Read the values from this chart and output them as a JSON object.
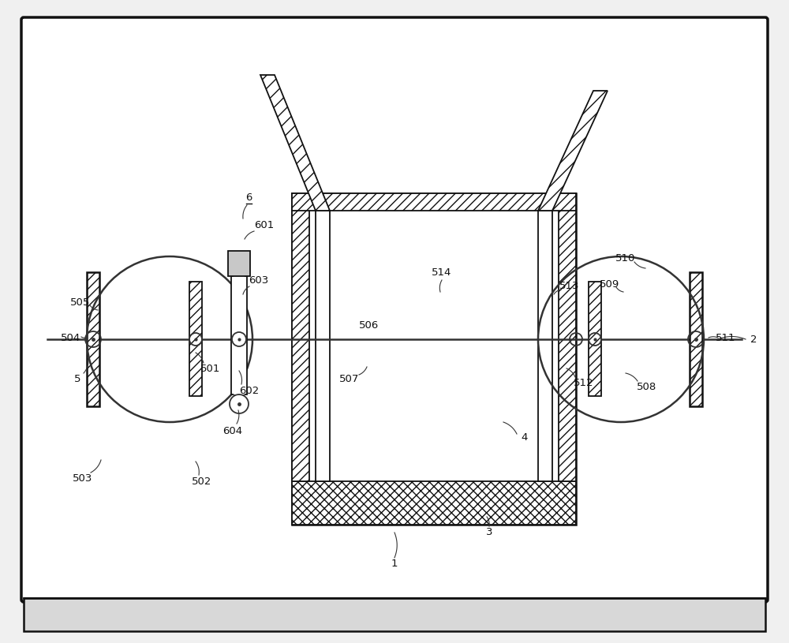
{
  "bg_outer": "#f0f0f0",
  "bg_inner": "#ffffff",
  "lc": "#333333",
  "bc": "#111111",
  "tc": "#111111",
  "fw": 10.0,
  "fh": 8.15,
  "dpi": 100
}
